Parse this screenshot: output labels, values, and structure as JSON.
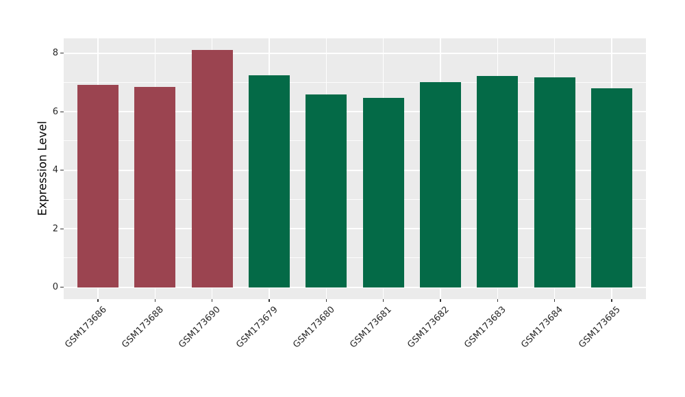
{
  "figure": {
    "background": "#ffffff",
    "panel_background": "#ebebeb",
    "grid_major_color": "#ffffff",
    "grid_minor_color": "#ffffff",
    "tick_color": "#333333",
    "tick_label_color": "#262626",
    "axis_title_color": "#000000"
  },
  "chart_data": {
    "type": "bar",
    "title": "",
    "xlabel": "",
    "ylabel": "Expression Level",
    "categories": [
      "GSM173686",
      "GSM173688",
      "GSM173690",
      "GSM173679",
      "GSM173680",
      "GSM173681",
      "GSM173682",
      "GSM173683",
      "GSM173684",
      "GSM173685"
    ],
    "values": [
      6.92,
      6.84,
      8.1,
      7.25,
      6.58,
      6.48,
      7.02,
      7.21,
      7.18,
      6.79
    ],
    "bar_colors": [
      "#9b4450",
      "#9b4450",
      "#9b4450",
      "#046a47",
      "#046a47",
      "#046a47",
      "#046a47",
      "#046a47",
      "#046a47",
      "#046a47"
    ],
    "group_colors": {
      "group_1": "#9b4450",
      "group_2": "#046a47"
    },
    "yticks_major": [
      0,
      2,
      4,
      6,
      8
    ],
    "yticks_minor": [
      1,
      3,
      5,
      7
    ],
    "ylim": [
      -0.405,
      8.505
    ],
    "grid": "major-and-minor-horizontal-white, major-vertical-white",
    "legend_position": "none",
    "x_label_rotation_deg": 45
  }
}
